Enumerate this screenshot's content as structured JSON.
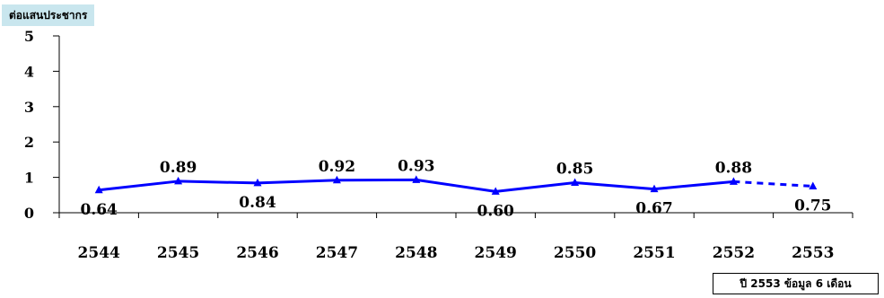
{
  "chart_data": {
    "type": "line",
    "ylabel": "ต่อแสนประชากร",
    "categories": [
      "2544",
      "2545",
      "2546",
      "2547",
      "2548",
      "2549",
      "2550",
      "2551",
      "2552",
      "2553"
    ],
    "series": [
      {
        "values": [
          0.64,
          0.89,
          0.84,
          0.92,
          0.93,
          0.6,
          0.85,
          0.67,
          0.88,
          0.75
        ],
        "data_labels": [
          "0.64",
          "0.89",
          "0.84",
          "0.92",
          "0.93",
          "0.60",
          "0.85",
          "0.67",
          "0.88",
          "0.75"
        ],
        "color": "#0000ff",
        "marker": "triangle",
        "dashed_from_category": "2552"
      }
    ],
    "yticks": [
      "0",
      "1",
      "2",
      "3",
      "4",
      "5"
    ],
    "ylim": [
      0,
      5
    ],
    "grid": false,
    "legend": "none",
    "note": "ปี 2553 ข้อมูล 6 เดือน"
  }
}
